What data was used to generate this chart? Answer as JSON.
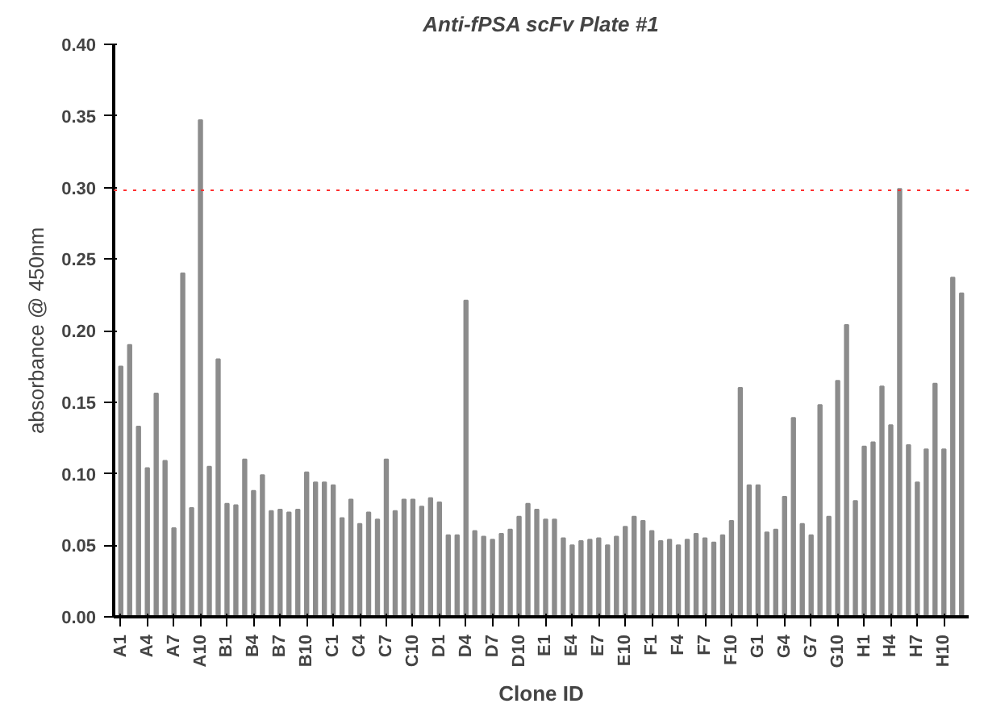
{
  "chart_data": {
    "type": "bar",
    "title": "Anti-fPSA scFv Plate #1",
    "xlabel": "Clone ID",
    "ylabel": "absorbance @ 450nm",
    "categories": [
      "A1",
      null,
      null,
      "A4",
      null,
      null,
      "A7",
      null,
      null,
      "A10",
      null,
      null,
      "B1",
      null,
      null,
      "B4",
      null,
      null,
      "B7",
      null,
      null,
      "B10",
      null,
      null,
      "C1",
      null,
      null,
      "C4",
      null,
      null,
      "C7",
      null,
      null,
      "C10",
      null,
      null,
      "D1",
      null,
      null,
      "D4",
      null,
      null,
      "D7",
      null,
      null,
      "D10",
      null,
      null,
      "E1",
      null,
      null,
      "E4",
      null,
      null,
      "E7",
      null,
      null,
      "E10",
      null,
      null,
      "F1",
      null,
      null,
      "F4",
      null,
      null,
      "F7",
      null,
      null,
      "F10",
      null,
      null,
      "G1",
      null,
      null,
      "G4",
      null,
      null,
      "G7",
      null,
      null,
      "G10",
      null,
      null,
      "H1",
      null,
      null,
      "H4",
      null,
      null,
      "H7",
      null,
      null,
      "H10",
      null,
      null
    ],
    "values": [
      0.175,
      0.19,
      0.133,
      0.104,
      0.156,
      0.109,
      0.062,
      0.24,
      0.076,
      0.347,
      0.105,
      0.18,
      0.079,
      0.078,
      0.11,
      0.088,
      0.099,
      0.074,
      0.075,
      0.073,
      0.075,
      0.101,
      0.094,
      0.094,
      0.092,
      0.069,
      0.082,
      0.065,
      0.073,
      0.068,
      0.11,
      0.074,
      0.082,
      0.082,
      0.077,
      0.083,
      0.08,
      0.057,
      0.057,
      0.221,
      0.06,
      0.056,
      0.054,
      0.058,
      0.061,
      0.07,
      0.079,
      0.075,
      0.068,
      0.068,
      0.055,
      0.05,
      0.053,
      0.054,
      0.055,
      0.05,
      0.056,
      0.063,
      0.07,
      0.067,
      0.06,
      0.053,
      0.054,
      0.05,
      0.054,
      0.058,
      0.055,
      0.052,
      0.057,
      0.067,
      0.16,
      0.092,
      0.092,
      0.059,
      0.061,
      0.084,
      0.139,
      0.065,
      0.057,
      0.148,
      0.07,
      0.165,
      0.204,
      0.081,
      0.119,
      0.122,
      0.161,
      0.134,
      0.299,
      0.12,
      0.094,
      0.117,
      0.163,
      0.117,
      0.237,
      0.226
    ],
    "color": "#8c8c8c",
    "ylim": [
      0,
      0.4
    ],
    "yticks": [
      {
        "value": 0,
        "label": "0.00"
      },
      {
        "value": 0.05,
        "label": "0.05"
      },
      {
        "value": 0.1,
        "label": "0.10"
      },
      {
        "value": 0.15,
        "label": "0.15"
      },
      {
        "value": 0.2,
        "label": "0.20"
      },
      {
        "value": 0.25,
        "label": "0.25"
      },
      {
        "value": 0.3,
        "label": "0.30"
      },
      {
        "value": 0.35,
        "label": "0.35"
      },
      {
        "value": 0.4,
        "label": "0.40"
      }
    ],
    "ref_lines": [
      {
        "axis": "y",
        "value": 0.298,
        "color": "#ff3030",
        "line_style": "dotted"
      }
    ],
    "grid": false
  }
}
